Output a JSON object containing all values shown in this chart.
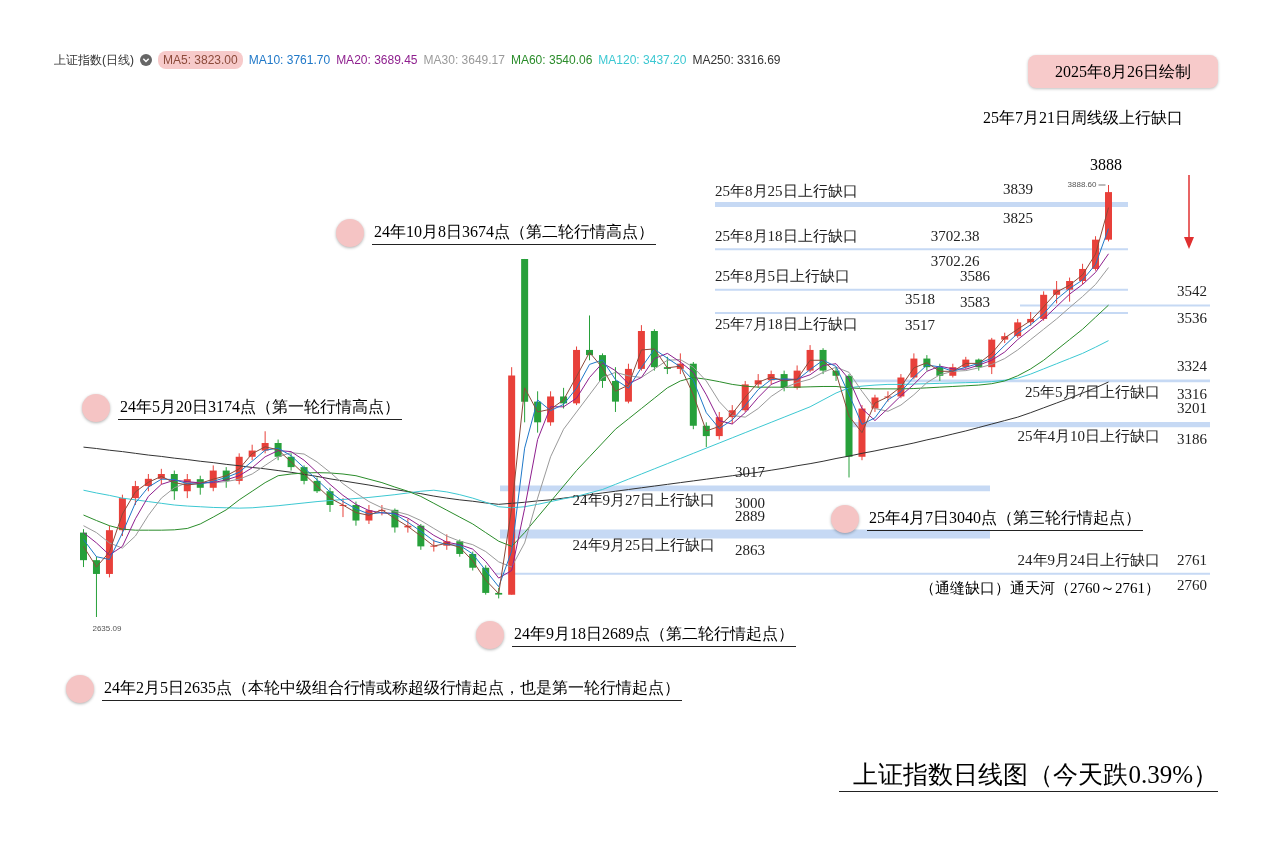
{
  "chart_data": {
    "type": "candlestick",
    "title": "上证指数日线图（今天跌0.39%）",
    "legend_title": "上证指数(日线)",
    "legend": "top",
    "marker": "none",
    "tick_labels": false,
    "categories": [
      null,
      null,
      null,
      null,
      null,
      null,
      null,
      null,
      null,
      null,
      null,
      null,
      null,
      null,
      null,
      null,
      null,
      null,
      null,
      null,
      null,
      null,
      null,
      null,
      null,
      null,
      null,
      null,
      null,
      null,
      null,
      null,
      null,
      null,
      null,
      null,
      null,
      null,
      null,
      null,
      null,
      null,
      null,
      null,
      null,
      null,
      null,
      null,
      null,
      null,
      null,
      null,
      null,
      null,
      null,
      null,
      null,
      null,
      null,
      null,
      null,
      null,
      null,
      null,
      null,
      null,
      null,
      null,
      null,
      null,
      null,
      null,
      null,
      null,
      null,
      null,
      null,
      null,
      null,
      null
    ],
    "ohlc": [
      [
        2880,
        2890,
        2780,
        2800
      ],
      [
        2800,
        2810,
        2635.09,
        2760
      ],
      [
        2760,
        2900,
        2750,
        2887
      ],
      [
        2887,
        2990,
        2870,
        2980
      ],
      [
        2980,
        3030,
        2960,
        3015
      ],
      [
        3015,
        3050,
        3000,
        3036
      ],
      [
        3036,
        3065,
        3020,
        3050
      ],
      [
        3050,
        3060,
        2975,
        3000
      ],
      [
        3000,
        3050,
        2980,
        3035
      ],
      [
        3035,
        3045,
        2990,
        3010
      ],
      [
        3010,
        3075,
        3000,
        3060
      ],
      [
        3060,
        3070,
        3010,
        3030
      ],
      [
        3030,
        3110,
        3020,
        3100
      ],
      [
        3100,
        3135,
        3090,
        3118
      ],
      [
        3118,
        3174,
        3110,
        3140
      ],
      [
        3140,
        3150,
        3090,
        3100
      ],
      [
        3100,
        3110,
        3060,
        3070
      ],
      [
        3070,
        3075,
        3020,
        3030
      ],
      [
        3030,
        3040,
        2995,
        3000
      ],
      [
        3000,
        3010,
        2940,
        2960
      ],
      [
        2960,
        2980,
        2925,
        2960
      ],
      [
        2960,
        2970,
        2900,
        2915
      ],
      [
        2915,
        2960,
        2905,
        2945
      ],
      [
        2945,
        2960,
        2930,
        2946
      ],
      [
        2946,
        2950,
        2880,
        2895
      ],
      [
        2895,
        2920,
        2880,
        2900
      ],
      [
        2900,
        2905,
        2830,
        2840
      ],
      [
        2840,
        2860,
        2825,
        2842
      ],
      [
        2842,
        2875,
        2830,
        2855
      ],
      [
        2855,
        2860,
        2810,
        2818
      ],
      [
        2818,
        2825,
        2770,
        2778
      ],
      [
        2778,
        2785,
        2700,
        2705
      ],
      [
        2705,
        2720,
        2689,
        2700
      ],
      [
        2700,
        3360,
        2700,
        3336
      ],
      [
        3674,
        3674,
        3200,
        3260
      ],
      [
        3260,
        3290,
        3170,
        3200
      ],
      [
        3200,
        3290,
        3190,
        3275
      ],
      [
        3275,
        3300,
        3240,
        3255
      ],
      [
        3255,
        3420,
        3250,
        3410
      ],
      [
        3410,
        3510,
        3380,
        3395
      ],
      [
        3395,
        3400,
        3300,
        3320
      ],
      [
        3320,
        3360,
        3230,
        3260
      ],
      [
        3260,
        3370,
        3255,
        3355
      ],
      [
        3355,
        3482,
        3350,
        3465
      ],
      [
        3465,
        3470,
        3350,
        3360
      ],
      [
        3360,
        3390,
        3340,
        3355
      ],
      [
        3355,
        3400,
        3340,
        3370
      ],
      [
        3370,
        3375,
        3180,
        3190
      ],
      [
        3190,
        3200,
        3128,
        3160
      ],
      [
        3160,
        3230,
        3150,
        3215
      ],
      [
        3215,
        3250,
        3195,
        3235
      ],
      [
        3235,
        3320,
        3230,
        3310
      ],
      [
        3310,
        3340,
        3300,
        3322
      ],
      [
        3322,
        3350,
        3310,
        3340
      ],
      [
        3340,
        3350,
        3290,
        3300
      ],
      [
        3300,
        3365,
        3295,
        3350
      ],
      [
        3350,
        3424,
        3345,
        3410
      ],
      [
        3410,
        3415,
        3340,
        3350
      ],
      [
        3350,
        3360,
        3320,
        3335
      ],
      [
        3335,
        3340,
        3040,
        3100
      ],
      [
        3100,
        3250,
        3090,
        3240
      ],
      [
        3240,
        3280,
        3230,
        3272
      ],
      [
        3272,
        3290,
        3260,
        3275
      ],
      [
        3275,
        3340,
        3270,
        3330
      ],
      [
        3330,
        3400,
        3325,
        3385
      ],
      [
        3385,
        3395,
        3350,
        3360
      ],
      [
        3360,
        3370,
        3320,
        3335
      ],
      [
        3335,
        3370,
        3330,
        3360
      ],
      [
        3360,
        3390,
        3355,
        3382
      ],
      [
        3382,
        3385,
        3350,
        3360
      ],
      [
        3360,
        3445,
        3340,
        3440
      ],
      [
        3440,
        3460,
        3430,
        3450
      ],
      [
        3450,
        3500,
        3445,
        3490
      ],
      [
        3490,
        3520,
        3480,
        3500
      ],
      [
        3500,
        3580,
        3495,
        3570
      ],
      [
        3570,
        3610,
        3545,
        3585
      ],
      [
        3585,
        3620,
        3550,
        3610
      ],
      [
        3610,
        3660,
        3600,
        3645
      ],
      [
        3645,
        3740,
        3640,
        3730
      ],
      [
        3730,
        3888.6,
        3725,
        3868
      ]
    ],
    "series": [
      {
        "type": "line",
        "name": "MA5: 3823.00",
        "color": "#8b4a3a",
        "values": [
          2840,
          2780,
          2824,
          2934,
          2998,
          3026,
          3043,
          3025,
          3018,
          3023,
          3035,
          3045,
          3065,
          3109,
          3129,
          3120,
          3085,
          3050,
          3015,
          2980,
          2960,
          2938,
          2930,
          2946,
          2921,
          2898,
          2870,
          2841,
          2849,
          2837,
          2798,
          2742,
          2703,
          2950,
          3300,
          3230,
          3238,
          3265,
          3333,
          3403,
          3358,
          3290,
          3308,
          3410,
          3413,
          3358,
          3363,
          3280,
          3175,
          3188,
          3225,
          3273,
          3316,
          3331,
          3320,
          3325,
          3380,
          3380,
          3343,
          3218,
          3170,
          3256,
          3274,
          3303,
          3358,
          3373,
          3348,
          3348,
          3371,
          3371,
          3400,
          3445,
          3470,
          3495,
          3535,
          3578,
          3598,
          3628,
          3688,
          3823
        ]
      },
      {
        "type": "line",
        "name": "MA10: 3761.70",
        "color": "#1f78c8",
        "values": [
          2860,
          2810,
          2802,
          2879,
          2966,
          3012,
          3035,
          3034,
          3022,
          3021,
          3029,
          3040,
          3055,
          3087,
          3119,
          3125,
          3103,
          3068,
          3033,
          2998,
          2970,
          2949,
          2934,
          2938,
          2934,
          2910,
          2884,
          2856,
          2845,
          2843,
          2818,
          2770,
          2723,
          2826,
          3125,
          3265,
          3234,
          3252,
          3299,
          3368,
          3381,
          3324,
          3299,
          3359,
          3412,
          3386,
          3361,
          3322,
          3228,
          3182,
          3207,
          3249,
          3295,
          3324,
          3326,
          3323,
          3353,
          3380,
          3362,
          3281,
          3194,
          3213,
          3265,
          3289,
          3331,
          3366,
          3361,
          3348,
          3360,
          3371,
          3386,
          3423,
          3458,
          3483,
          3515,
          3557,
          3588,
          3613,
          3658,
          3762
        ]
      },
      {
        "type": "line",
        "name": "MA20: 3689.45",
        "color": "#8e1f8e",
        "values": [
          2880,
          2850,
          2815,
          2840,
          2920,
          2985,
          3020,
          3032,
          3028,
          3024,
          3025,
          3033,
          3045,
          3068,
          3100,
          3118,
          3115,
          3090,
          3055,
          3020,
          2988,
          2962,
          2944,
          2937,
          2936,
          2922,
          2898,
          2872,
          2852,
          2845,
          2832,
          2796,
          2748,
          2770,
          2950,
          3150,
          3245,
          3245,
          3270,
          3330,
          3372,
          3350,
          3312,
          3330,
          3385,
          3400,
          3375,
          3345,
          3280,
          3205,
          3195,
          3228,
          3272,
          3310,
          3325,
          3325,
          3338,
          3365,
          3370,
          3325,
          3240,
          3205,
          3240,
          3277,
          3310,
          3348,
          3363,
          3355,
          3354,
          3366,
          3380,
          3404,
          3440,
          3470,
          3500,
          3536,
          3572,
          3600,
          3635,
          3689
        ]
      },
      {
        "type": "line",
        "name": "MA30: 3649.17",
        "color": "#9a9a9a",
        "values": [
          2900,
          2880,
          2850,
          2835,
          2870,
          2930,
          2980,
          3010,
          3025,
          3026,
          3025,
          3028,
          3035,
          3050,
          3075,
          3100,
          3112,
          3108,
          3085,
          3055,
          3022,
          2995,
          2970,
          2952,
          2942,
          2932,
          2915,
          2892,
          2870,
          2855,
          2845,
          2825,
          2795,
          2780,
          2850,
          2980,
          3100,
          3180,
          3230,
          3280,
          3330,
          3345,
          3335,
          3330,
          3355,
          3380,
          3382,
          3360,
          3320,
          3260,
          3220,
          3215,
          3240,
          3275,
          3300,
          3315,
          3325,
          3345,
          3360,
          3345,
          3290,
          3240,
          3232,
          3250,
          3280,
          3315,
          3338,
          3348,
          3350,
          3358,
          3368,
          3385,
          3410,
          3440,
          3470,
          3500,
          3533,
          3565,
          3600,
          3649
        ]
      },
      {
        "type": "line",
        "name": "MA60: 3540.06",
        "color": "#2a8c2a",
        "values": [
          2931,
          2915,
          2900,
          2890,
          2887,
          2887,
          2887,
          2888,
          2892,
          2905,
          2925,
          2946,
          2975,
          3000,
          3025,
          3045,
          3050,
          3053,
          3054,
          3053,
          3050,
          3045,
          3035,
          3025,
          3012,
          3000,
          2985,
          2965,
          2945,
          2925,
          2905,
          2880,
          2855,
          2840,
          2880,
          2925,
          2970,
          3015,
          3060,
          3100,
          3140,
          3180,
          3210,
          3240,
          3270,
          3300,
          3320,
          3330,
          3325,
          3318,
          3310,
          3305,
          3302,
          3302,
          3302,
          3302,
          3303,
          3304,
          3304,
          3300,
          3298,
          3297,
          3297,
          3297,
          3298,
          3300,
          3302,
          3304,
          3306,
          3308,
          3312,
          3320,
          3335,
          3355,
          3380,
          3410,
          3440,
          3470,
          3505,
          3540
        ]
      },
      {
        "type": "line",
        "name": "MA120: 3437.20",
        "color": "#3cc8d2",
        "values": [
          3003,
          2995,
          2988,
          2980,
          2975,
          2970,
          2965,
          2960,
          2957,
          2955,
          2953,
          2952,
          2951,
          2952,
          2955,
          2958,
          2962,
          2966,
          2970,
          2973,
          2976,
          2979,
          2982,
          2986,
          2990,
          2995,
          3000,
          3003,
          2998,
          2990,
          2980,
          2968,
          2955,
          2952,
          2955,
          2962,
          2970,
          2978,
          2985,
          2995,
          3005,
          3020,
          3035,
          3050,
          3065,
          3080,
          3095,
          3110,
          3125,
          3140,
          3155,
          3170,
          3185,
          3200,
          3215,
          3230,
          3245,
          3265,
          3285,
          3300,
          3305,
          3308,
          3310,
          3310,
          3311,
          3312,
          3313,
          3314,
          3315,
          3316,
          3318,
          3322,
          3328,
          3340,
          3355,
          3370,
          3385,
          3400,
          3418,
          3437
        ]
      },
      {
        "type": "line",
        "name": "MA250: 3316.69",
        "color": "#333333",
        "values": [
          3128,
          3124,
          3119,
          3115,
          3110,
          3105,
          3101,
          3096,
          3092,
          3087,
          3083,
          3078,
          3074,
          3069,
          3065,
          3060,
          3055,
          3049,
          3043,
          3036,
          3030,
          3024,
          3018,
          3011,
          3005,
          2999,
          2993,
          2986,
          2980,
          2975,
          2971,
          2966,
          2962,
          2965,
          2968,
          2972,
          2975,
          2980,
          2985,
          2990,
          2995,
          3000,
          3005,
          3010,
          3015,
          3020,
          3025,
          3030,
          3035,
          3040,
          3045,
          3050,
          3055,
          3061,
          3067,
          3074,
          3080,
          3087,
          3095,
          3102,
          3110,
          3117,
          3125,
          3132,
          3140,
          3149,
          3157,
          3166,
          3175,
          3185,
          3195,
          3205,
          3215,
          3228,
          3242,
          3256,
          3270,
          3285,
          3300,
          3317
        ]
      }
    ],
    "bands": [
      {
        "axis": "y",
        "from": 3825,
        "to": 3839,
        "label": "25年8月25日上行缺口",
        "color": "#c6d9f4"
      },
      {
        "axis": "y",
        "from": 3702.26,
        "to": 3702.38,
        "label": "25年8月18日上行缺口",
        "color": "#c6d9f4"
      },
      {
        "axis": "y",
        "from": 3583,
        "to": 3586,
        "label": "25年8月5日上行缺口",
        "color": "#c6d9f4"
      },
      {
        "axis": "y",
        "from": 3517,
        "to": 3518,
        "label": "25年7月18日上行缺口",
        "color": "#c6d9f4"
      },
      {
        "axis": "y",
        "from": 3536,
        "to": 3542,
        "color": "#c6d9f4"
      },
      {
        "axis": "y",
        "from": 3316,
        "to": 3324,
        "label": "25年5月7日上行缺口",
        "color": "#c6d9f4"
      },
      {
        "axis": "y",
        "from": 3186,
        "to": 3201,
        "label": "25年4月10日上行缺口",
        "color": "#c6d9f4"
      },
      {
        "axis": "y",
        "from": 3000,
        "to": 3017,
        "label": "24年9月27日上行缺口",
        "color": "#c6d9f4"
      },
      {
        "axis": "y",
        "from": 2863,
        "to": 2889,
        "label": "24年9月25日上行缺口",
        "color": "#c6d9f4"
      },
      {
        "axis": "y",
        "from": 2760,
        "to": 2761,
        "label": "24年9月24日上行缺口",
        "color": "#c6d9f4"
      }
    ],
    "annotations": [
      "2025年8月26日绘制",
      "25年7月21日周线级上行缺口",
      "3888",
      "24年10月8日3674点（第二轮行情高点）",
      "24年5月20日3174点（第一轮行情高点）",
      "25年4月7日3040点（第三轮行情起点）",
      "24年9月18日2689点（第二轮行情起点）",
      "24年2月5日2635点（本轮中级组合行情或称超级行情起点，也是第一轮行情起点）",
      "（通缝缺口）通天河（2760～2761）",
      {
        "text": "3839",
        "y": 3839
      },
      {
        "text": "3825",
        "y": 3825
      },
      {
        "text": "3702.38",
        "y": 3702.38
      },
      {
        "text": "3702.26",
        "y": 3702.26
      },
      {
        "text": "3586",
        "y": 3586
      },
      {
        "text": "3583",
        "y": 3583
      },
      {
        "text": "3518",
        "y": 3518
      },
      {
        "text": "3517",
        "y": 3517
      },
      {
        "text": "3542",
        "y": 3542
      },
      {
        "text": "3536",
        "y": 3536
      },
      {
        "text": "3324",
        "y": 3324
      },
      {
        "text": "3316",
        "y": 3316
      },
      {
        "text": "3201",
        "y": 3201
      },
      {
        "text": "3186",
        "y": 3186
      },
      {
        "text": "3017",
        "y": 3017
      },
      {
        "text": "3000",
        "y": 3000
      },
      {
        "text": "2889",
        "y": 2889
      },
      {
        "text": "2863",
        "y": 2863
      },
      {
        "text": "2761",
        "y": 2761
      },
      {
        "text": "2760",
        "y": 2760
      },
      "3888.60",
      "2635.09"
    ]
  }
}
